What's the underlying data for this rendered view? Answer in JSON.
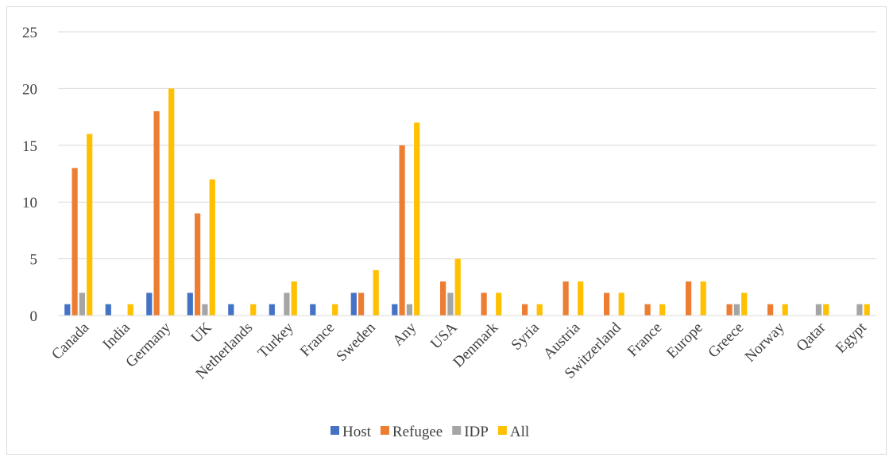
{
  "chart_data": {
    "type": "bar",
    "title": "",
    "xlabel": "",
    "ylabel": "",
    "ylim": [
      0,
      25
    ],
    "yticks": [
      0,
      5,
      10,
      15,
      20,
      25
    ],
    "grid": true,
    "legend": "bottom",
    "categories": [
      "Canada",
      "India",
      "Germany",
      "UK",
      "Netherlands",
      "Turkey",
      "France",
      "Sweden",
      "Any",
      "USA",
      "Denmark",
      "Syria",
      "Austria",
      "Switzerland",
      "France",
      "Europe",
      "Greece",
      "Norway",
      "Qatar",
      "Egypt"
    ],
    "series": [
      {
        "name": "Host",
        "color": "#4472c4",
        "values": [
          1,
          1,
          2,
          2,
          1,
          1,
          1,
          2,
          1,
          0,
          0,
          0,
          0,
          0,
          0,
          0,
          0,
          0,
          0,
          0
        ]
      },
      {
        "name": "Refugee",
        "color": "#ed7d31",
        "values": [
          13,
          0,
          18,
          9,
          0,
          0,
          0,
          2,
          15,
          3,
          2,
          1,
          3,
          2,
          1,
          3,
          1,
          1,
          0,
          0
        ]
      },
      {
        "name": "IDP",
        "color": "#a5a5a5",
        "values": [
          2,
          0,
          0,
          1,
          0,
          2,
          0,
          0,
          1,
          2,
          0,
          0,
          0,
          0,
          0,
          0,
          1,
          0,
          1,
          1
        ]
      },
      {
        "name": "All",
        "color": "#ffc000",
        "values": [
          16,
          1,
          20,
          12,
          1,
          3,
          1,
          4,
          17,
          5,
          2,
          1,
          3,
          2,
          1,
          3,
          2,
          1,
          1,
          1
        ]
      }
    ]
  }
}
